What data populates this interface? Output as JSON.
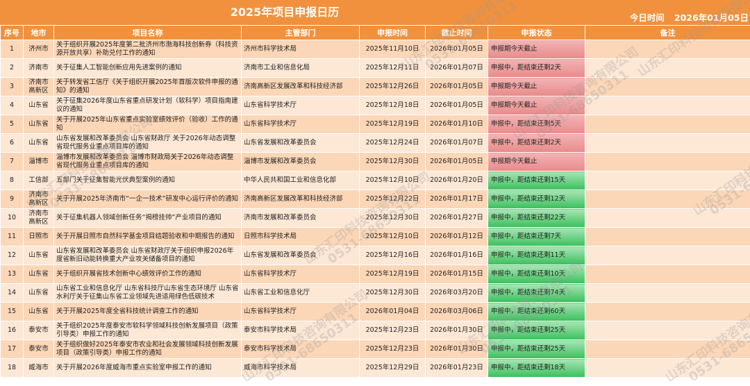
{
  "header": {
    "title": "2025年项目申报日历",
    "today_label": "今日时间",
    "today_date": "2026年01月05日"
  },
  "columns": [
    "序号",
    "地市",
    "项目名称",
    "主管部门",
    "申报时间",
    "截止时间",
    "申报状态",
    "备注"
  ],
  "rows": [
    {
      "no": "1",
      "city": "济州市",
      "name": "关于组织开展2025年度第二批济州市渤海科技创新券（科技资源开放共享）补助兑付工作的通知",
      "dept": "济州市科学技术局",
      "start": "2025年11月10日",
      "end": "2026年01月05日",
      "status": "申报期今天截止",
      "state": "red"
    },
    {
      "no": "2",
      "city": "济南市",
      "name": "关于征集人工智能创新应用先进案例的通知",
      "dept": "济南市工业和信息化局",
      "start": "2025年12月11日",
      "end": "2026年01月07日",
      "status": "申报中，距结束还剩2天",
      "state": "red"
    },
    {
      "no": "3",
      "city": "济南市高新区",
      "name": "关于转发省工信厅《关于组织开展2025年首版次软件申报的通知》的通知",
      "dept": "济南高新区发展改革和科技经济部",
      "start": "2025年12月26日",
      "end": "2026年01月05日",
      "status": "申报期今天截止",
      "state": "red"
    },
    {
      "no": "4",
      "city": "山东省",
      "name": "关于征集2026年度山东省重点研发计划（软科学）项目指南建议的通知",
      "dept": "山东省科学技术厅",
      "start": "2025年12月18日",
      "end": "2026年01月05日",
      "status": "申报期今天截止",
      "state": "red"
    },
    {
      "no": "5",
      "city": "山东省",
      "name": "关于开展2025年山东省重点实验室绩效评价（验收）工作的通知",
      "dept": "山东省科学技术厅",
      "start": "2025年12月19日",
      "end": "2026年01月10日",
      "status": "申报中，距结束还剩5天",
      "state": "red"
    },
    {
      "no": "6",
      "city": "山东省",
      "name": "山东省发展和改革委员会 山东省财政厅 关于2026年动态调整省现代服务业重点项目库的通知",
      "dept": "山东省发展和改革委员会",
      "start": "2025年12月24日",
      "end": "2026年01月07日",
      "status": "申报中，距结束还剩2天",
      "state": "red"
    },
    {
      "no": "7",
      "city": "淄博市",
      "name": "淄博市发展和改革委员会 淄博市财政局关于2026年动态调整省现代服务业重点项目库的通知",
      "dept": "淄博市发展和改革委员会",
      "start": "2025年12月30日",
      "end": "2026年01月05日",
      "status": "申报期今天截止",
      "state": "red"
    },
    {
      "no": "8",
      "city": "工信部",
      "name": "五部门关于征集智能光伏典型案例的通知",
      "dept": "中华人民共和国工业和信息化部",
      "start": "2025年12月10日",
      "end": "2026年01月20日",
      "status": "申报中，距结束还剩15天",
      "state": "green"
    },
    {
      "no": "9",
      "city": "济南市高新区",
      "name": "关于开展2025年济南市“一企一技术”研发中心运行评价的通知",
      "dept": "济南高新区发展改革和科技经济部",
      "start": "2025年12月22日",
      "end": "2026年01月17日",
      "status": "申报中，距结束还剩12天",
      "state": "green"
    },
    {
      "no": "10",
      "city": "济南市高新区",
      "name": "关于征集机器人领域创新任务“揭榜挂帅”产业项目的通知",
      "dept": "济南市发展和改革委员会",
      "start": "2025年12月30日",
      "end": "2026年01月27日",
      "status": "申报中，距结束还剩22天",
      "state": "green"
    },
    {
      "no": "11",
      "city": "日照市",
      "name": "关于开展日照市自然科学基金项目结题验收和中期报告的通知",
      "dept": "日照市科学技术局",
      "start": "2025年12月10日",
      "end": "2026年01月12日",
      "status": "申报中，距结束还剩7天",
      "state": "green"
    },
    {
      "no": "12",
      "city": "山东省",
      "name": "山东省发展和改革委员会 山东省财政厅关于组织申报2026年度省新旧动能转换重大产业攻关储备项目的通知",
      "dept": "山东省发展和改革委员会",
      "start": "2025年12月16日",
      "end": "2026年01月16日",
      "status": "申报中，距结束还剩11天",
      "state": "green"
    },
    {
      "no": "13",
      "city": "山东省",
      "name": "关于组织开展省技术创新中心绩效评价工作的通知",
      "dept": "山东省科学技术厅",
      "start": "2025年12月19日",
      "end": "2026年01月15日",
      "status": "申报中，距结束还剩10天",
      "state": "green"
    },
    {
      "no": "14",
      "city": "山东省",
      "name": "山东省工业和信息化厅 山东省科技厅山东省生态环境厅 山东省水利厅关于征集山东省工业领域先进适用绿色低碳技术",
      "dept": "山东省工业和信息化厅",
      "start": "2025年12月30日",
      "end": "2026年03月20日",
      "status": "申报中，距结束还剩74天",
      "state": "green"
    },
    {
      "no": "15",
      "city": "山东省",
      "name": "关于开展2025年度全省科技统计调查工作的通知",
      "dept": "山东省科学技术厅",
      "start": "2026年01月04日",
      "end": "2026年03月06日",
      "status": "申报中，距结束还剩60天",
      "state": "green"
    },
    {
      "no": "16",
      "city": "泰安市",
      "name": "关于组织2025年度泰安市软科学领域科技创新发展项目（政策引导类）申报工作的通知",
      "dept": "泰安市科学技术局",
      "start": "2025年12月23日",
      "end": "2026年01月30日",
      "status": "申报中，距结束还剩25天",
      "state": "green"
    },
    {
      "no": "17",
      "city": "泰安市",
      "name": "关于组织做好2025年泰安市农业和社会发展领域科技创新发展项目（政策引导类）申报工作的通知",
      "dept": "泰安市科学技术局",
      "start": "2025年12月23日",
      "end": "2026年01月30日",
      "status": "申报中，距结束还剩25天",
      "state": "green"
    },
    {
      "no": "18",
      "city": "威海市",
      "name": "关于开展2026年度威海市重点实验室申报工作的通知",
      "dept": "威海市科学技术局",
      "start": "2025年12月29日",
      "end": "2026年01月23日",
      "status": "申报中，距结束还剩18天",
      "state": "green"
    }
  ],
  "watermarks": {
    "company": "山东汇印科技咨询有限公司",
    "phone": "0531-68650311"
  }
}
